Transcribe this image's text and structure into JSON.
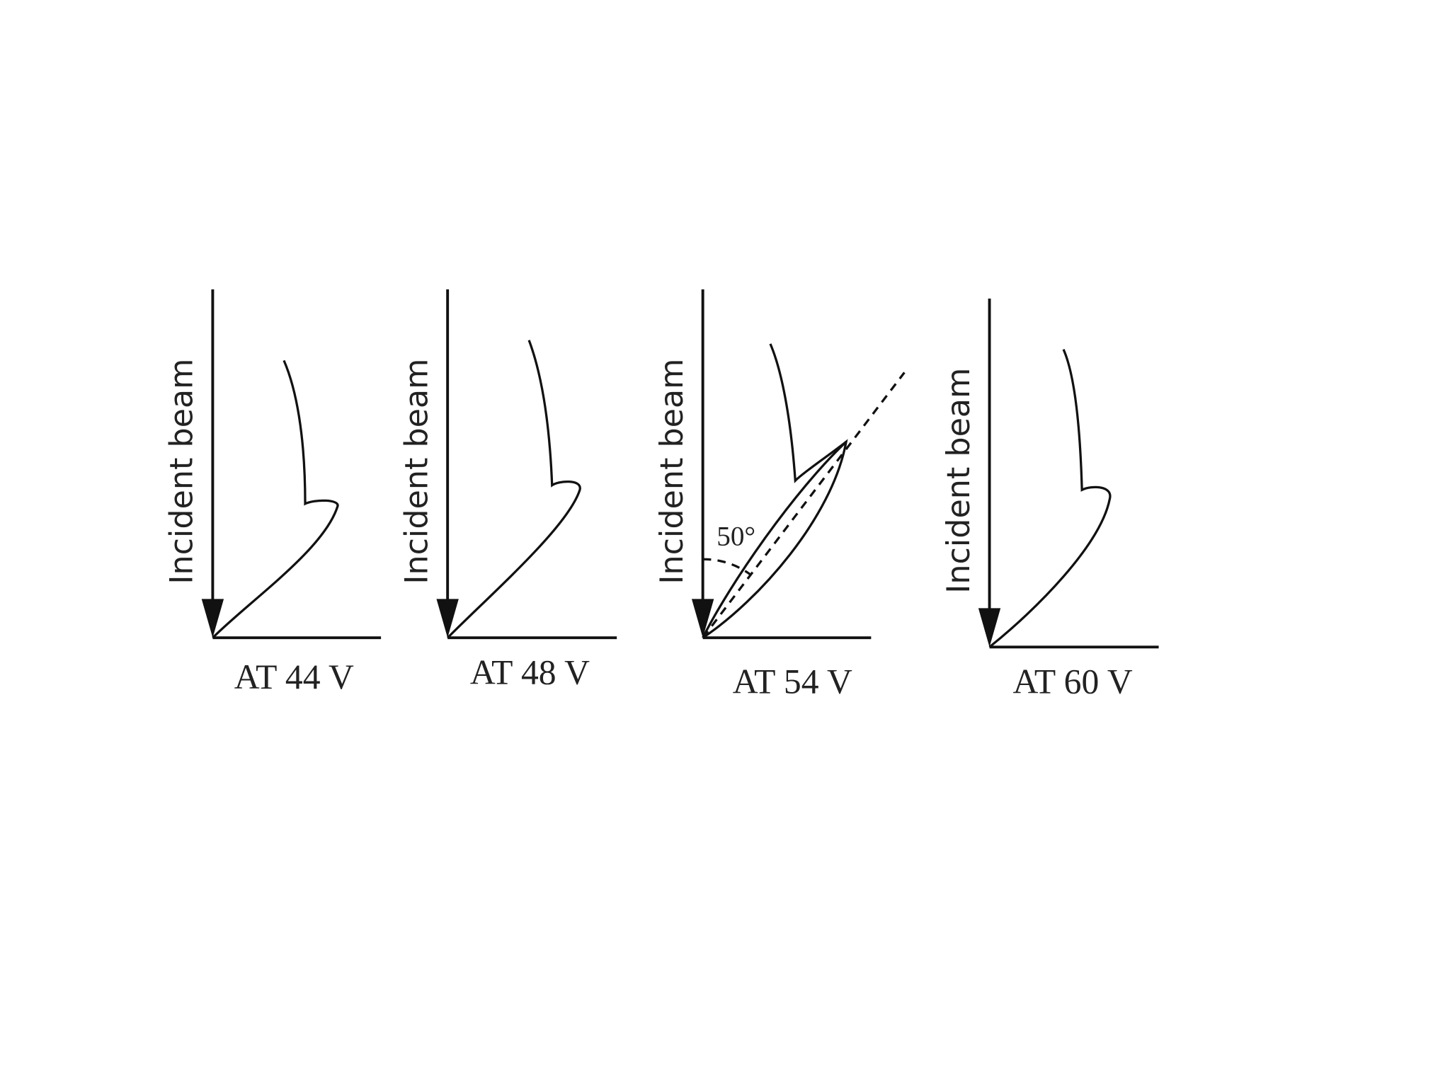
{
  "panels": [
    {
      "beam_label": "Incident beam",
      "caption": "AT 44 V"
    },
    {
      "beam_label": "Incident beam",
      "caption": "AT 48 V"
    },
    {
      "beam_label": "Incident beam",
      "caption": "AT 54 V",
      "angle_label": "50°"
    },
    {
      "beam_label": "Incident beam",
      "caption": "AT 60 V"
    }
  ]
}
